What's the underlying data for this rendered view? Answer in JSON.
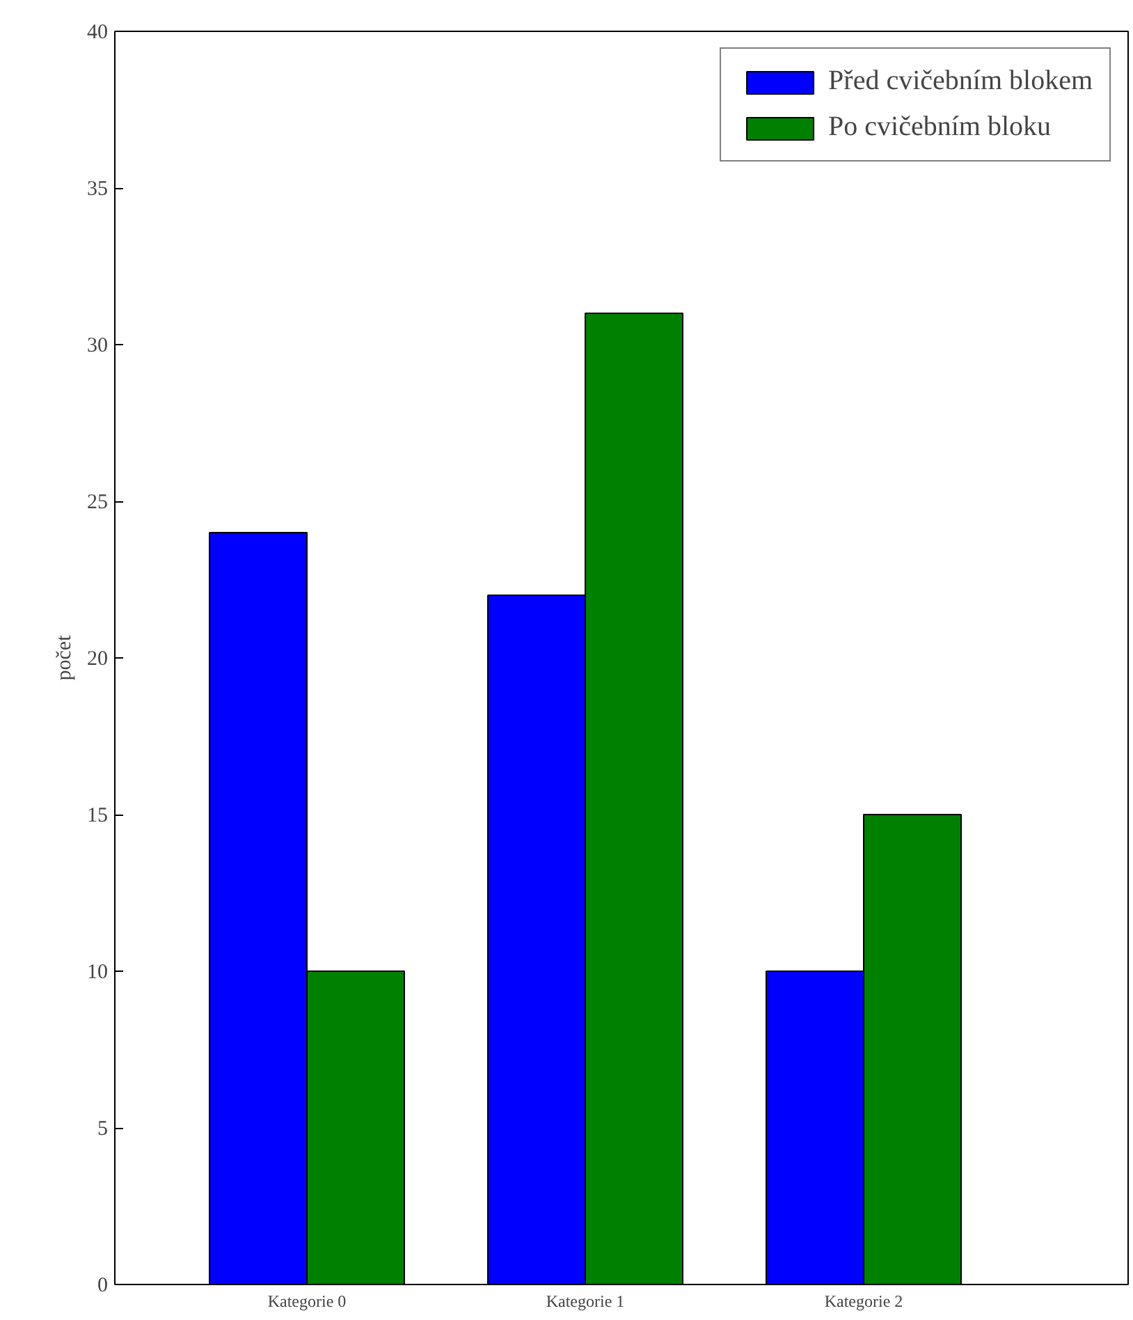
{
  "chart_data": {
    "type": "bar",
    "ylabel": "počet",
    "categories": [
      "Kategorie 0",
      "Kategorie 1",
      "Kategorie 2"
    ],
    "series": [
      {
        "name": "Před cvičebním blokem",
        "color": "#0000ff",
        "values": [
          24,
          22,
          10
        ]
      },
      {
        "name": "Po cvičebním bloku",
        "color": "#008000",
        "values": [
          10,
          31,
          15
        ]
      }
    ],
    "ylim": [
      0,
      40
    ],
    "yticks": [
      0,
      5,
      10,
      15,
      20,
      25,
      30,
      35,
      40
    ],
    "grid": false,
    "legend": "top right"
  }
}
